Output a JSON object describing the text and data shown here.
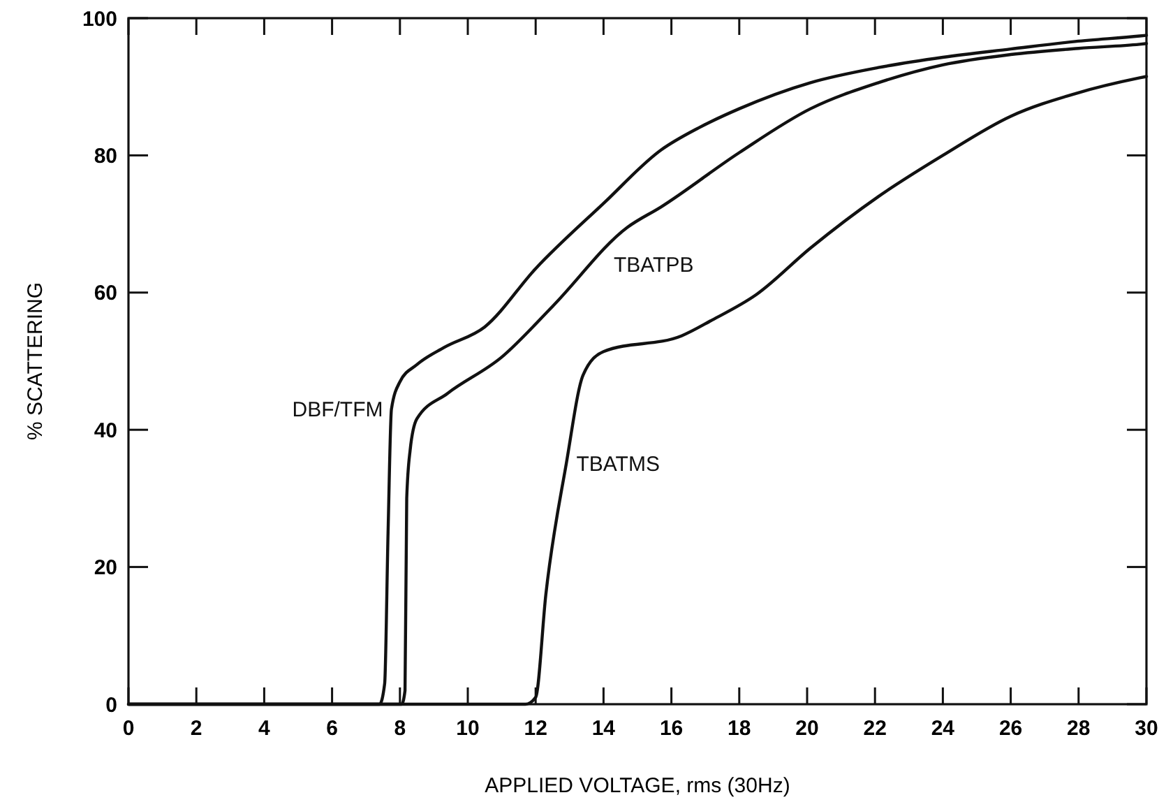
{
  "chart_data": {
    "type": "line",
    "xlabel": "APPLIED VOLTAGE, rms (30Hz)",
    "ylabel": "% SCATTERING",
    "xlim": [
      0,
      30
    ],
    "ylim": [
      0,
      100
    ],
    "xticks": [
      0,
      2,
      4,
      6,
      8,
      10,
      12,
      14,
      16,
      18,
      20,
      22,
      24,
      26,
      28,
      30
    ],
    "yticks": [
      0,
      20,
      40,
      60,
      80,
      100
    ],
    "grid": false,
    "marker": "none",
    "line_style": "solid",
    "series": [
      {
        "name": "DBF/TFM",
        "color": "#111111",
        "x": [
          0,
          7.4,
          7.55,
          7.65,
          7.75,
          8.0,
          8.5,
          9.3,
          10.5,
          12.0,
          14.0,
          15.7,
          16.8,
          18.0,
          20.1,
          22.1,
          24.0,
          26.0,
          27.9,
          29.8,
          30
        ],
        "values": [
          0,
          0,
          3,
          25,
          43,
          47,
          49.5,
          52,
          55,
          63.5,
          73,
          80.8,
          84,
          86.8,
          90.6,
          92.8,
          94.3,
          95.5,
          96.6,
          97.4,
          97.5
        ]
      },
      {
        "name": "TBATPB",
        "color": "#111111",
        "x": [
          0,
          8.05,
          8.15,
          8.2,
          8.3,
          8.5,
          9.4,
          11.0,
          12.5,
          14.7,
          15.7,
          18.0,
          20.1,
          22.1,
          24.0,
          26.0,
          28.0,
          29.8,
          30
        ],
        "values": [
          0,
          0,
          2,
          30,
          37,
          41.6,
          45.3,
          50.6,
          58,
          69.5,
          72.5,
          80.4,
          86.8,
          90.6,
          93.2,
          94.7,
          95.6,
          96.2,
          96.3
        ]
      },
      {
        "name": "TBATMS",
        "color": "#111111",
        "x": [
          0,
          11.7,
          12.0,
          12.3,
          12.9,
          13.4,
          14.0,
          16.3,
          17.2,
          18.5,
          20.1,
          22.1,
          24.0,
          26.0,
          27.9,
          29.8,
          30
        ],
        "values": [
          0,
          0,
          1,
          16,
          35,
          48,
          51.4,
          53.7,
          56,
          59.7,
          66.5,
          74,
          80,
          85.7,
          89,
          91.3,
          91.5
        ]
      }
    ]
  }
}
